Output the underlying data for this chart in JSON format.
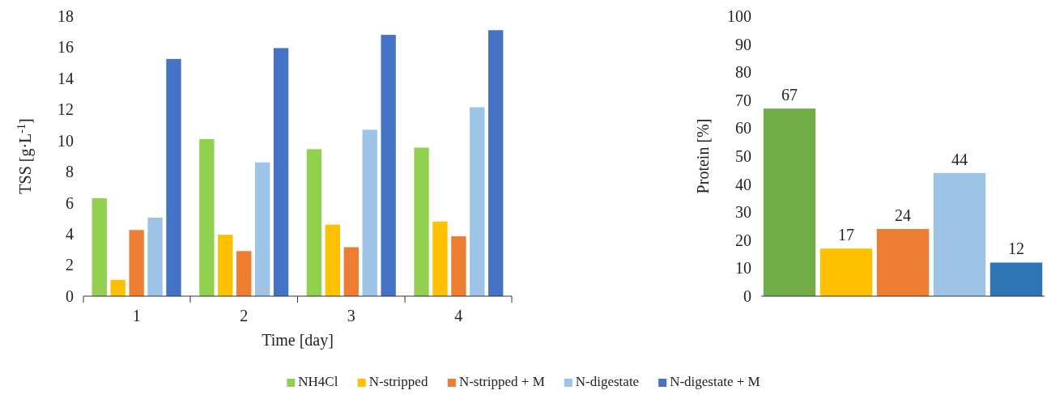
{
  "chart_data": [
    {
      "type": "bar",
      "ylabel": "TSS [g·L$^{-1}$]",
      "xlabel": "Time [day]",
      "categories": [
        "1",
        "2",
        "3",
        "4"
      ],
      "ylim": [
        0,
        18
      ],
      "yticks": [
        0,
        2,
        4,
        6,
        8,
        10,
        12,
        14,
        16,
        18
      ],
      "legend": "bottom",
      "series": [
        {
          "name": "NH4Cl",
          "color": "#92d050",
          "values": [
            6.3,
            10.1,
            9.45,
            9.55
          ]
        },
        {
          "name": "N-stripped",
          "color": "#ffc000",
          "values": [
            1.05,
            3.95,
            4.6,
            4.8
          ]
        },
        {
          "name": "N-stripped + M",
          "color": "#ed7d31",
          "values": [
            4.25,
            2.9,
            3.15,
            3.85
          ]
        },
        {
          "name": "N-digestate",
          "color": "#9dc3e6",
          "values": [
            5.05,
            8.6,
            10.7,
            12.15
          ]
        },
        {
          "name": "N-digestate + M",
          "color": "#4472c4",
          "values": [
            15.25,
            15.95,
            16.8,
            17.1
          ]
        }
      ]
    },
    {
      "type": "bar",
      "ylabel": "Protein [%]",
      "categories": [
        null,
        null,
        null,
        null,
        null
      ],
      "values": [
        67,
        17,
        24,
        44,
        12
      ],
      "colors": [
        "#70ad47",
        "#ffc000",
        "#ed7d31",
        "#9dc3e6",
        "#2e75b6"
      ],
      "data_labels": true,
      "ylim": [
        0,
        100
      ],
      "yticks": [
        0,
        10,
        20,
        30,
        40,
        50,
        60,
        70,
        80,
        90,
        100
      ]
    }
  ]
}
